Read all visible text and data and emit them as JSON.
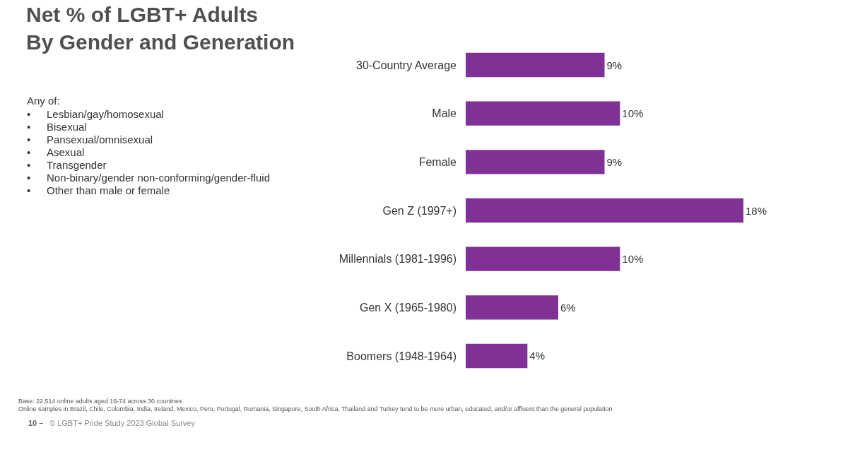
{
  "chart_data": {
    "type": "bar",
    "orientation": "horizontal",
    "title": "Net % of LGBT+ Adults\nBy Gender and Generation",
    "categories": [
      "30-Country Average",
      "Male",
      "Female",
      "Gen Z (1997+)",
      "Millennials (1981-1996)",
      "Gen X (1965-1980)",
      "Boomers (1948-1964)"
    ],
    "values": [
      9,
      10,
      9,
      18,
      10,
      6,
      4
    ],
    "color": "#7f3196",
    "value_labels": [
      "9%",
      "10%",
      "9%",
      "18%",
      "10%",
      "6%",
      "4%"
    ],
    "annotations": [
      "Any of:",
      "•\tLesbian/gay/homosexual",
      "•\tBisexual",
      "•\tPansexual/omnisexual",
      "•\tAsexual",
      "•\tTransgender",
      "•\tNon-binary/gender non-conforming/gender-fluid",
      "•\tOther than male or female",
      "Base: 22,514 online adults aged 16-74 across 30 countries",
      "Online samples in Brazil, Chile, Colombia, India, Ireland, Mexico, Peru, Portugal, Romania, Singapore, South Africa, Thailand and Turkey tend to be more urban, educated, and/or affluent than the general population",
      "10 –",
      "© LGBT+ Pride Study 2023 Global Survey"
    ]
  }
}
